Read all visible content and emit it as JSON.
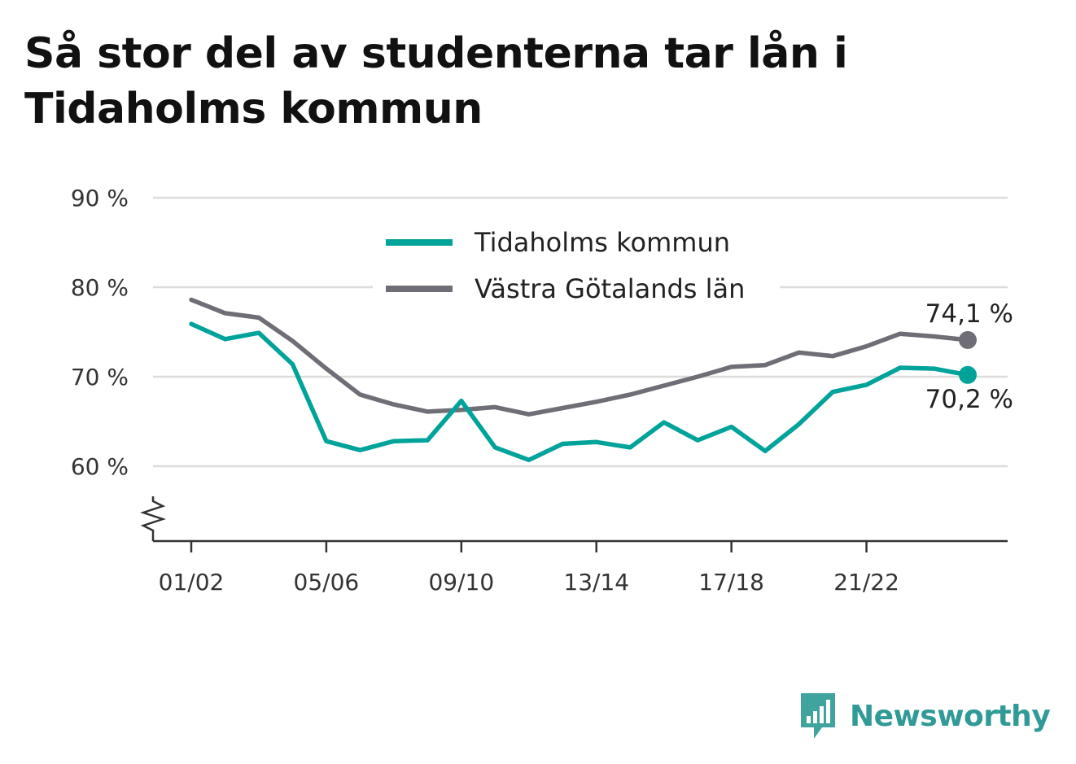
{
  "title": "Så stor del av studenterna tar lån i Tidaholms kommun",
  "brand": {
    "name": "Newsworthy",
    "icon": "newsworthy-logo-icon"
  },
  "colors": {
    "teal": "#00a39a",
    "gray": "#6f6e76",
    "grid": "#dcdcdc",
    "axis": "#333333"
  },
  "chart_data": {
    "type": "line",
    "title": "Så stor del av studenterna tar lån i Tidaholms kommun",
    "xlabel": "",
    "ylabel": "",
    "x": [
      "01/02",
      "02/03",
      "03/04",
      "04/05",
      "05/06",
      "06/07",
      "07/08",
      "08/09",
      "09/10",
      "10/11",
      "11/12",
      "12/13",
      "13/14",
      "14/15",
      "15/16",
      "16/17",
      "17/18",
      "18/19",
      "19/20",
      "20/21",
      "21/22",
      "22/23",
      "23/24",
      "24/25"
    ],
    "xtick_labels": [
      "01/02",
      "05/06",
      "09/10",
      "13/14",
      "17/18",
      "21/22"
    ],
    "yticks": [
      60,
      70,
      80,
      90
    ],
    "ytick_labels": [
      "60 %",
      "70 %",
      "80 %",
      "90 %"
    ],
    "ylim": [
      52,
      90
    ],
    "grid": true,
    "axis_break": true,
    "legend_position": "top-center",
    "series": [
      {
        "name": "Tidaholms kommun",
        "color": "#00a39a",
        "values": [
          75.9,
          74.2,
          74.9,
          71.4,
          62.8,
          61.8,
          62.8,
          62.9,
          67.3,
          62.1,
          60.7,
          62.5,
          62.7,
          62.1,
          64.9,
          62.9,
          64.4,
          61.7,
          64.7,
          68.3,
          69.1,
          71.0,
          70.9,
          70.2
        ],
        "end_label": "70,2 %"
      },
      {
        "name": "Västra Götalands län",
        "color": "#6f6e76",
        "values": [
          78.6,
          77.1,
          76.6,
          74.0,
          70.9,
          68.0,
          66.9,
          66.1,
          66.3,
          66.6,
          65.8,
          66.5,
          67.2,
          68.0,
          69.0,
          70.0,
          71.1,
          71.3,
          72.7,
          72.3,
          73.4,
          74.8,
          74.5,
          74.1
        ],
        "end_label": "74,1 %"
      }
    ]
  }
}
